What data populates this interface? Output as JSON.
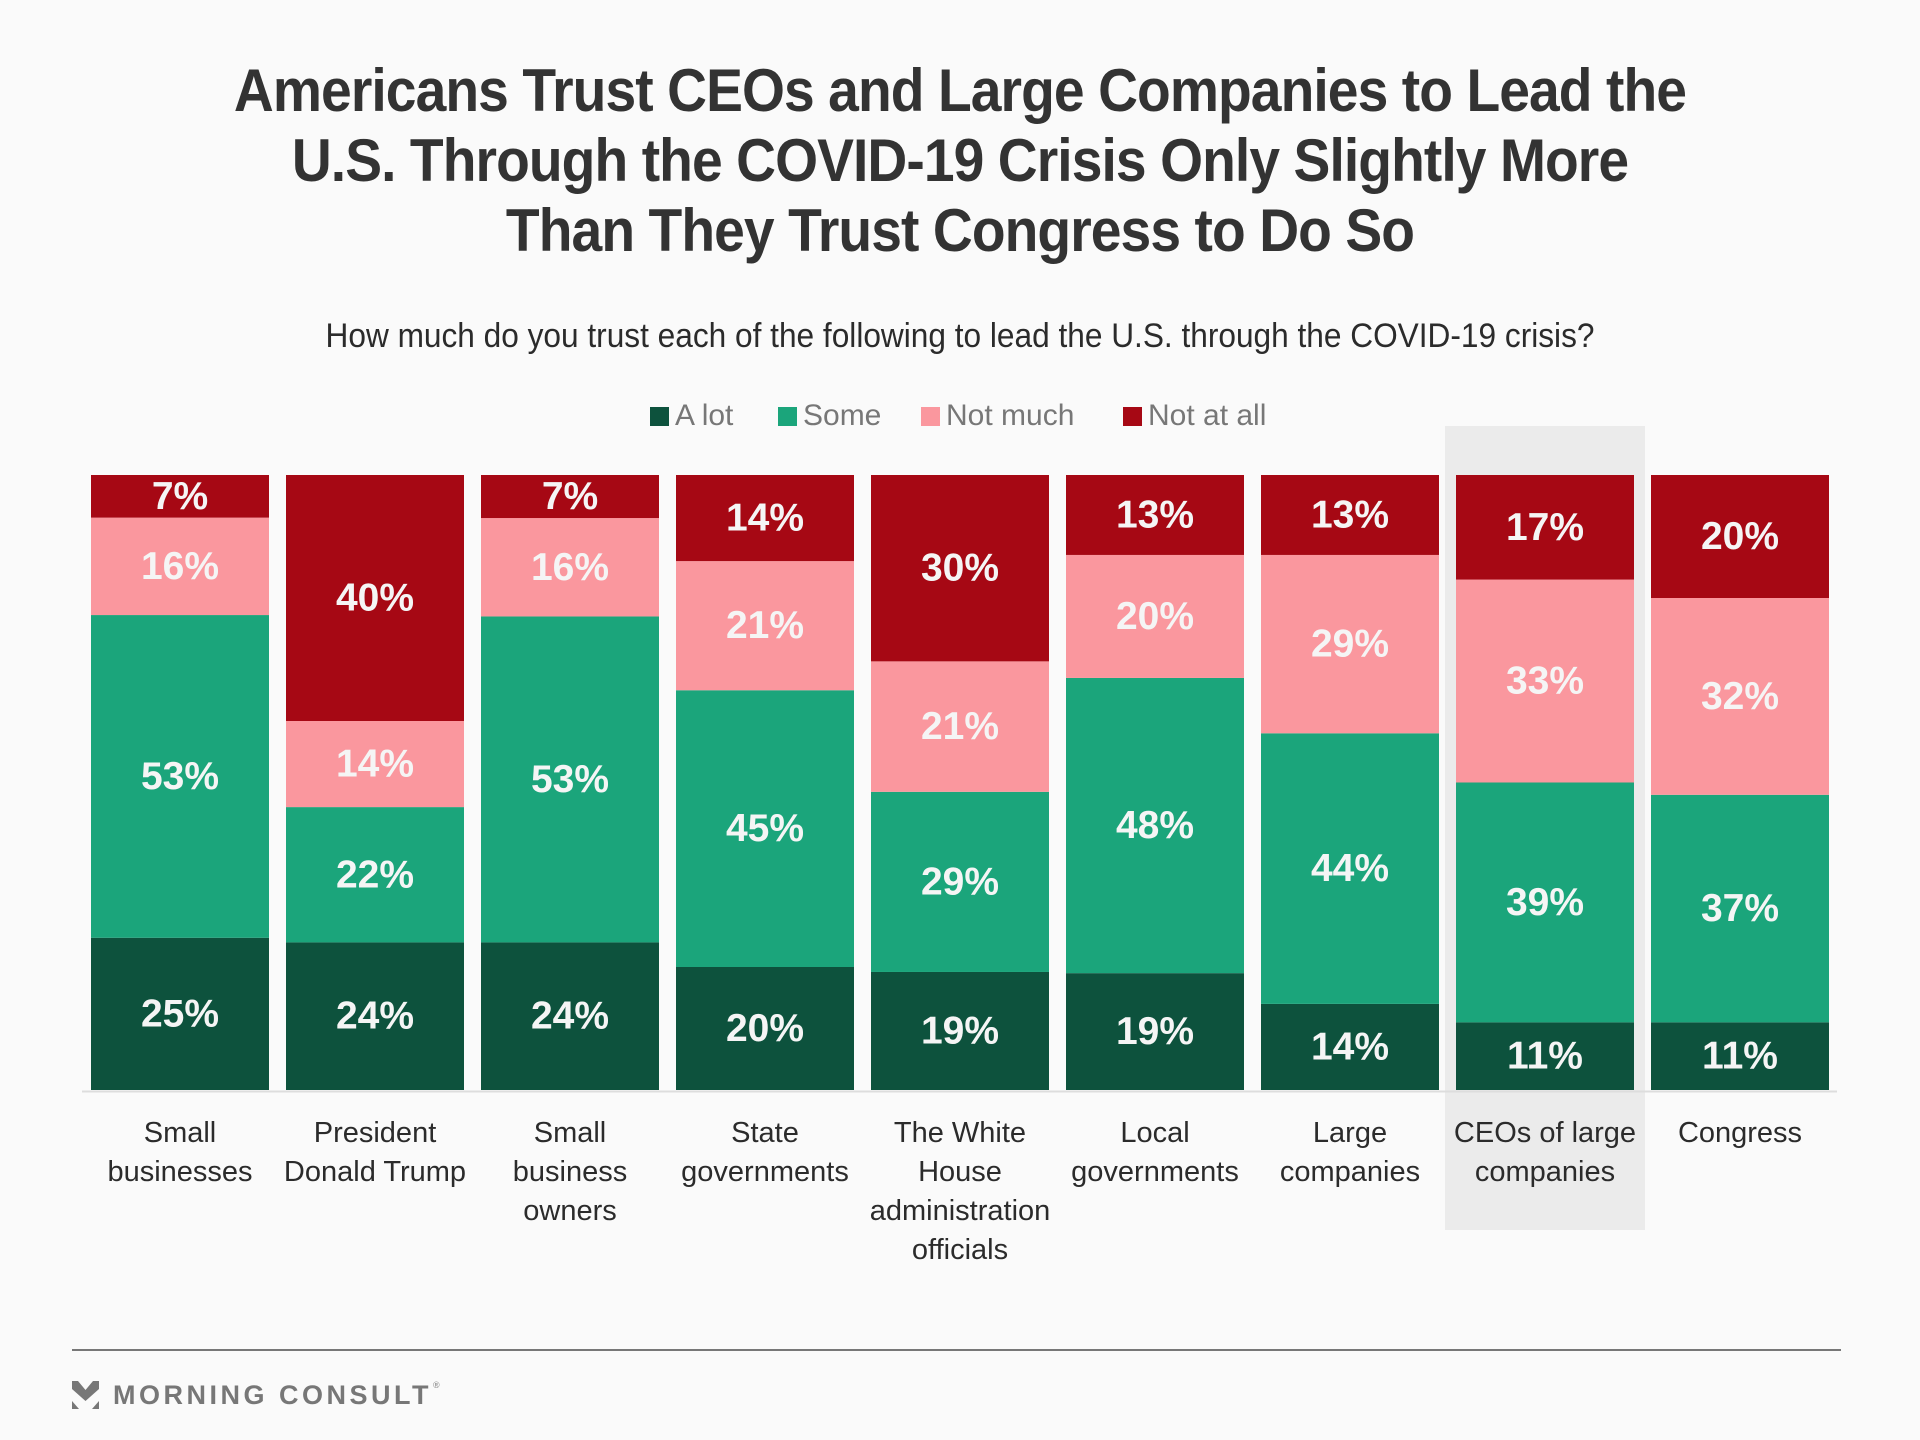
{
  "chart_data": {
    "type": "bar",
    "stacked": true,
    "title": "Americans Trust CEOs and Large Companies to Lead the U.S. Through the COVID-19 Crisis Only Slightly More Than They Trust Congress to Do So",
    "title_lines": [
      "Americans Trust CEOs and Large Companies to Lead the",
      "U.S. Through the COVID-19 Crisis Only Slightly More",
      "Than They Trust Congress to Do So"
    ],
    "subtitle": "How much do you trust each of the following to lead the U.S. through the COVID-19 crisis?",
    "xlabel": "",
    "ylabel": "",
    "ylim": [
      0,
      100
    ],
    "grid": false,
    "legend_position": "top-center",
    "categories": [
      "Small businesses",
      "President Donald Trump",
      "Small business owners",
      "State governments",
      "The White House administration officials",
      "Local governments",
      "Large companies",
      "CEOs of large companies",
      "Congress"
    ],
    "category_label_lines": [
      [
        "Small",
        "businesses"
      ],
      [
        "President",
        "Donald Trump"
      ],
      [
        "Small",
        "business",
        "owners"
      ],
      [
        "State",
        "governments"
      ],
      [
        "The White",
        "House",
        "administration",
        "officials"
      ],
      [
        "Local",
        "governments"
      ],
      [
        "Large",
        "companies"
      ],
      [
        "CEOs of large",
        "companies"
      ],
      [
        "Congress"
      ]
    ],
    "highlighted_category": "CEOs of large companies",
    "series": [
      {
        "name": "A lot",
        "color": "#0d523d",
        "values": [
          25,
          24,
          24,
          20,
          19,
          19,
          14,
          11,
          11
        ]
      },
      {
        "name": "Some",
        "color": "#1ba57b",
        "values": [
          53,
          22,
          53,
          45,
          29,
          48,
          44,
          39,
          37
        ]
      },
      {
        "name": "Not much",
        "color": "#fa979e",
        "values": [
          16,
          14,
          16,
          21,
          21,
          20,
          29,
          33,
          32
        ]
      },
      {
        "name": "Not at all",
        "color": "#a60814",
        "values": [
          7,
          40,
          7,
          14,
          30,
          13,
          13,
          17,
          20
        ]
      }
    ],
    "value_suffix": "%"
  },
  "footer": {
    "brand": "MORNING CONSULT",
    "brand_mark": "®"
  }
}
